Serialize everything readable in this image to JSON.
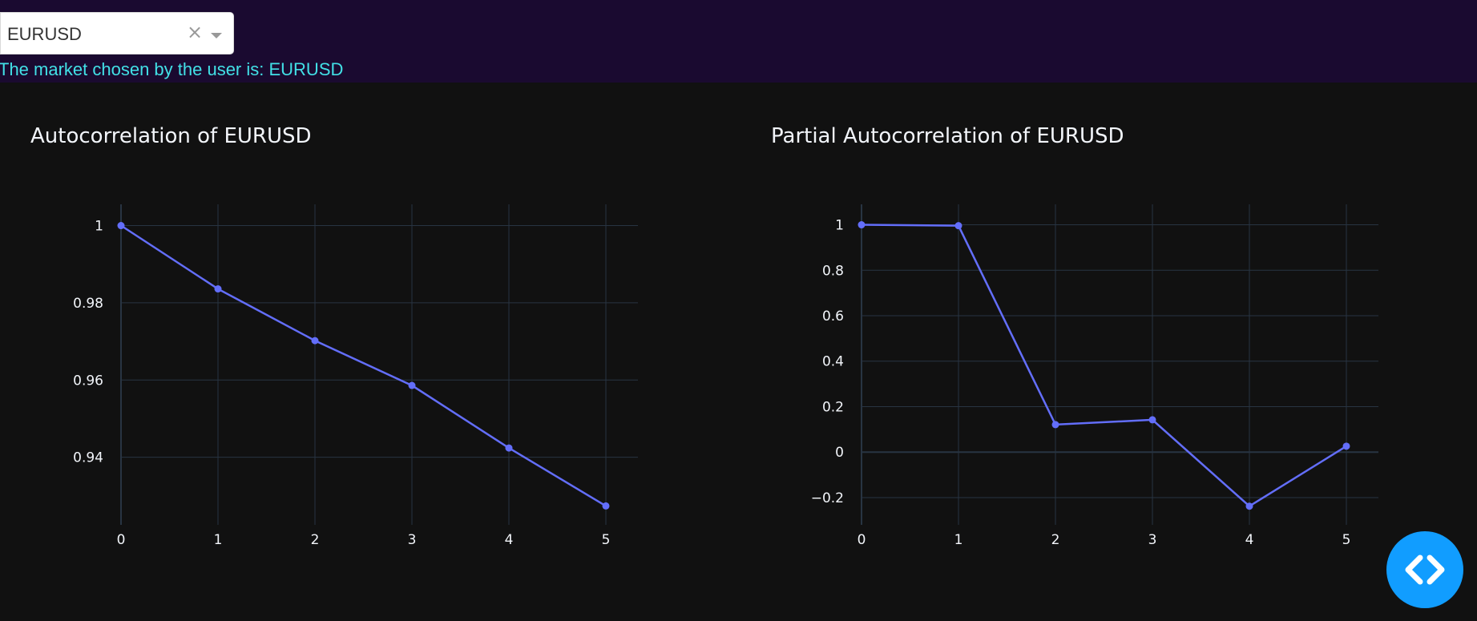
{
  "market_select": {
    "value": "EURUSD"
  },
  "status_text": "The market chosen by the user is: EURUSD",
  "colors": {
    "line": "#636efa",
    "grid": "#283442",
    "text": "#f2f5fa",
    "status": "#42e0e6",
    "fab": "#119dff"
  },
  "icons": {
    "clear": "clear-x-icon",
    "caret": "caret-down-icon",
    "fab": "code-brackets-icon"
  },
  "chart_data": [
    {
      "type": "line",
      "title": "Autocorrelation of EURUSD",
      "x": [
        0,
        1,
        2,
        3,
        4,
        5
      ],
      "series": [
        {
          "values": [
            1.0,
            0.9836,
            0.9702,
            0.9586,
            0.9424,
            0.9274
          ]
        }
      ],
      "xlim": [
        0,
        5
      ],
      "ylim": [
        0.9225,
        1.0055
      ],
      "xticks": [
        "0",
        "1",
        "2",
        "3",
        "4",
        "5"
      ],
      "yticks": [
        {
          "value": 1.0,
          "label": "1"
        },
        {
          "value": 0.98,
          "label": "0.98"
        },
        {
          "value": 0.96,
          "label": "0.96"
        },
        {
          "value": 0.94,
          "label": "0.94"
        }
      ],
      "grid": true,
      "markers": true
    },
    {
      "type": "line",
      "title": "Partial Autocorrelation of EURUSD",
      "x": [
        0,
        1,
        2,
        3,
        4,
        5
      ],
      "series": [
        {
          "values": [
            1.0,
            0.996,
            0.121,
            0.142,
            -0.238,
            0.026
          ]
        }
      ],
      "xlim": [
        0,
        5
      ],
      "ylim": [
        -0.32,
        1.09
      ],
      "xticks": [
        "0",
        "1",
        "2",
        "3",
        "4",
        "5"
      ],
      "yticks": [
        {
          "value": 1.0,
          "label": "1"
        },
        {
          "value": 0.8,
          "label": "0.8"
        },
        {
          "value": 0.6,
          "label": "0.6"
        },
        {
          "value": 0.4,
          "label": "0.4"
        },
        {
          "value": 0.2,
          "label": "0.2"
        },
        {
          "value": 0,
          "label": "0"
        },
        {
          "value": -0.2,
          "label": "−0.2"
        }
      ],
      "grid": true,
      "markers": true
    }
  ]
}
